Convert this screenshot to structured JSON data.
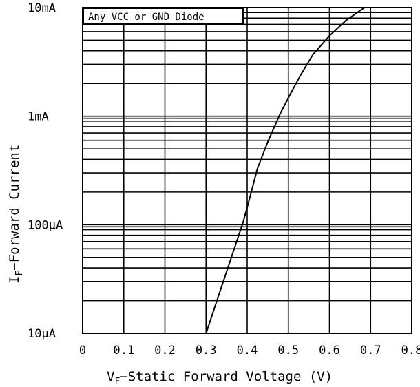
{
  "chart_data": {
    "type": "line",
    "title": "",
    "legend_label": "Any VCC or GND Diode",
    "xlabel_main": "V",
    "xlabel_sub": "F",
    "xlabel_rest": "−Static Forward Voltage (V)",
    "ylabel_main": "I",
    "ylabel_sub": "F",
    "ylabel_rest": "−Forward Current",
    "xlim": [
      0,
      0.8
    ],
    "ylim": [
      1e-05,
      0.01
    ],
    "y_scale": "log",
    "grid": true,
    "x_ticks": [
      "0",
      "0.1",
      "0.2",
      "0.3",
      "0.4",
      "0.5",
      "0.6",
      "0.7",
      "0.8"
    ],
    "y_ticks": [
      "10µA",
      "100µA",
      "1mA",
      "10mA"
    ],
    "series": [
      {
        "x": [
          0.3,
          0.33,
          0.36,
          0.39,
          0.405,
          0.425,
          0.45,
          0.48,
          0.505,
          0.53,
          0.56,
          0.6,
          0.64,
          0.685
        ],
        "y": [
          1e-05,
          2.2e-05,
          4.8e-05,
          0.000105,
          0.00017,
          0.00033,
          0.00058,
          0.00105,
          0.0016,
          0.0024,
          0.0037,
          0.0055,
          0.0076,
          0.01
        ]
      }
    ]
  }
}
